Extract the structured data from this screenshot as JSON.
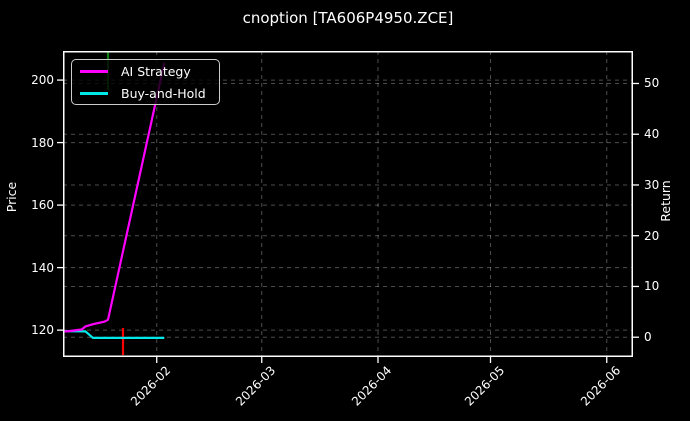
{
  "window": {
    "title": "cnoption [TA606P4950.ZCE]"
  },
  "axes": {
    "left": {
      "label": "Price",
      "ticks": [
        "120",
        "140",
        "160",
        "180",
        "200"
      ]
    },
    "right": {
      "label": "Return",
      "ticks": [
        "0",
        "10",
        "20",
        "30",
        "40",
        "50"
      ]
    },
    "x": {
      "ticks": [
        "2026-02",
        "2026-03",
        "2026-04",
        "2026-05",
        "2026-06"
      ]
    }
  },
  "legend": {
    "items": [
      {
        "label": "AI Strategy",
        "color": "#ff00ff"
      },
      {
        "label": "Buy-and-Hold",
        "color": "#00e8e8"
      }
    ]
  },
  "chart_data": {
    "type": "line",
    "title": "cnoption [TA606P4950.ZCE]",
    "ylabel_left": "Price",
    "ylabel_right": "Return",
    "grid": true,
    "legend_position": "upper left",
    "background": "#000000",
    "price_ylim": [
      111.4,
      209.3
    ],
    "return_ylim": [
      -3.9,
      56.4
    ],
    "x_range": [
      "2026-01-07",
      "2026-06-08"
    ],
    "x_tick_dates": [
      "2026-02-01",
      "2026-03-01",
      "2026-04-01",
      "2026-05-01",
      "2026-06-01"
    ],
    "price_tick_values": [
      120,
      140,
      160,
      180,
      200
    ],
    "return_tick_values": [
      0,
      10,
      20,
      30,
      40,
      50
    ],
    "series": [
      {
        "name": "AI Strategy",
        "axis": "left",
        "color": "#ff00ff",
        "points": [
          [
            "2026-01-07",
            119.7
          ],
          [
            "2026-01-08",
            119.6
          ],
          [
            "2026-01-12",
            120.2
          ],
          [
            "2026-01-13",
            121.2
          ],
          [
            "2026-01-15",
            121.9
          ],
          [
            "2026-01-18",
            122.7
          ],
          [
            "2026-01-19",
            123.3
          ],
          [
            "2026-02-03",
            205.5
          ]
        ]
      },
      {
        "name": "Buy-and-Hold",
        "axis": "left",
        "color": "#00e8e8",
        "points": [
          [
            "2026-01-07",
            119.7
          ],
          [
            "2026-01-13",
            119.6
          ],
          [
            "2026-01-15",
            117.5
          ],
          [
            "2026-02-03",
            117.5
          ]
        ]
      }
    ],
    "event_vlines": [
      {
        "date": "2026-01-19",
        "color": "#128012",
        "location": "top"
      },
      {
        "date": "2026-01-23",
        "color": "#ff0000",
        "location": "bottom"
      }
    ]
  }
}
